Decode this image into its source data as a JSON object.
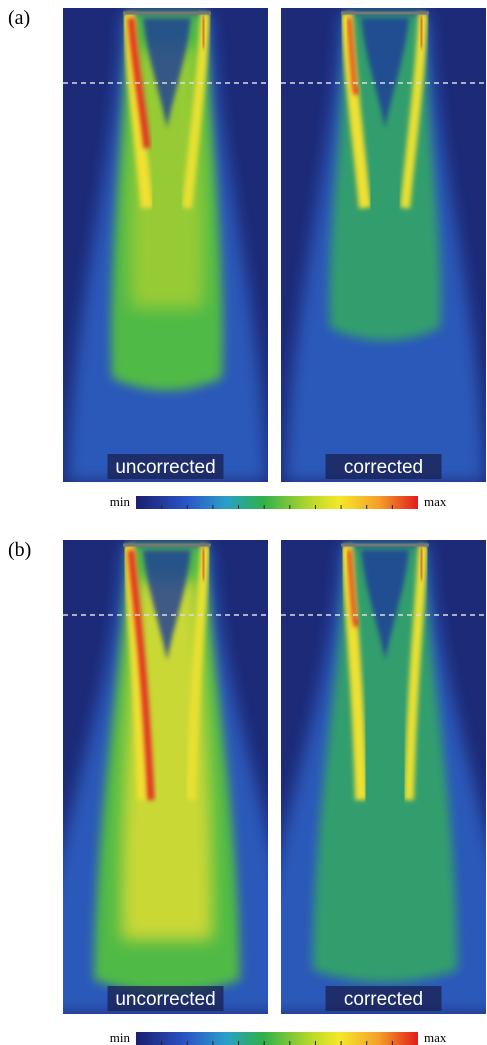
{
  "panels": [
    {
      "label": "(a)",
      "images": [
        {
          "caption": "uncorrected"
        },
        {
          "caption": "corrected"
        }
      ],
      "colorbar": {
        "min_label": "min",
        "max_label": "max"
      }
    },
    {
      "label": "(b)",
      "images": [
        {
          "caption": "uncorrected"
        },
        {
          "caption": "corrected"
        }
      ],
      "colorbar": {
        "min_label": "min",
        "max_label": "max"
      }
    }
  ]
}
